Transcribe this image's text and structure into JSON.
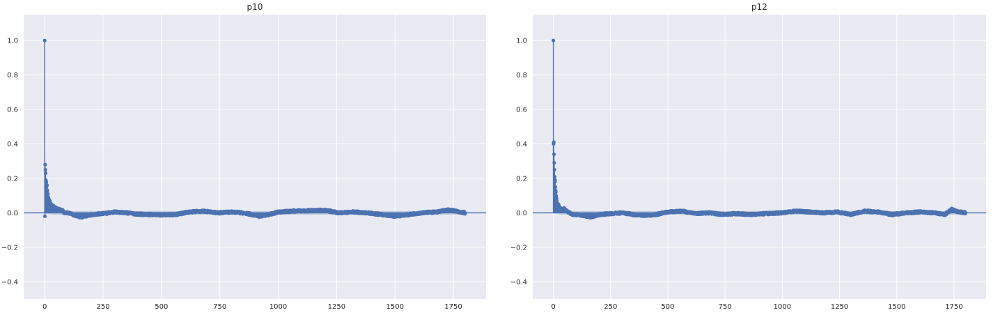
{
  "chart_data": [
    {
      "type": "acf-stem",
      "title": "p10",
      "xlabel": "",
      "ylabel": "",
      "xlim": [
        -90,
        1890
      ],
      "ylim": [
        -0.5,
        1.15
      ],
      "xticks": [
        0,
        250,
        500,
        750,
        1000,
        1250,
        1500,
        1750
      ],
      "yticks": [
        -0.4,
        -0.2,
        0.0,
        0.2,
        0.4,
        0.6,
        0.8,
        1.0
      ],
      "ytick_labels": [
        "−0.4",
        "−0.2",
        "0.0",
        "0.2",
        "0.4",
        "0.6",
        "0.8",
        "1.0"
      ],
      "grid": true,
      "max_lag": 1800,
      "confidence_band": 0.046,
      "series": [
        {
          "values_note": "",
          "early_lags": [
            [
              0,
              1.0
            ],
            [
              1,
              -0.02
            ],
            [
              2,
              0.28
            ],
            [
              3,
              0.25
            ],
            [
              4,
              0.23
            ],
            [
              5,
              0.19
            ],
            [
              6,
              0.17
            ],
            [
              7,
              0.18
            ],
            [
              8,
              0.15
            ],
            [
              9,
              0.12
            ],
            [
              10,
              0.16
            ],
            [
              11,
              0.1
            ],
            [
              12,
              0.13
            ],
            [
              13,
              0.08
            ],
            [
              14,
              0.11
            ],
            [
              15,
              0.07
            ],
            [
              16,
              0.09
            ],
            [
              17,
              0.06
            ],
            [
              18,
              0.08
            ],
            [
              20,
              0.06
            ],
            [
              22,
              0.07
            ],
            [
              25,
              0.05
            ],
            [
              28,
              0.05
            ],
            [
              32,
              0.04
            ],
            [
              36,
              0.04
            ],
            [
              40,
              0.03
            ],
            [
              45,
              0.03
            ],
            [
              50,
              0.02
            ],
            [
              55,
              0.025
            ],
            [
              60,
              0.02
            ],
            [
              70,
              0.015
            ],
            [
              80,
              0.01
            ]
          ],
          "tail_knots": [
            [
              100,
              0.0
            ],
            [
              130,
              -0.015
            ],
            [
              160,
              -0.025
            ],
            [
              200,
              -0.01
            ],
            [
              250,
              -0.005
            ],
            [
              300,
              0.005
            ],
            [
              350,
              0.0
            ],
            [
              400,
              -0.008
            ],
            [
              450,
              -0.01
            ],
            [
              500,
              -0.012
            ],
            [
              560,
              -0.01
            ],
            [
              620,
              0.005
            ],
            [
              680,
              0.01
            ],
            [
              740,
              0.0
            ],
            [
              800,
              0.005
            ],
            [
              860,
              -0.002
            ],
            [
              920,
              -0.02
            ],
            [
              960,
              -0.01
            ],
            [
              1000,
              0.005
            ],
            [
              1060,
              0.01
            ],
            [
              1120,
              0.012
            ],
            [
              1200,
              0.015
            ],
            [
              1260,
              0.0
            ],
            [
              1320,
              0.005
            ],
            [
              1380,
              0.0
            ],
            [
              1440,
              -0.01
            ],
            [
              1500,
              -0.02
            ],
            [
              1560,
              -0.01
            ],
            [
              1620,
              0.0
            ],
            [
              1680,
              0.005
            ],
            [
              1730,
              0.018
            ],
            [
              1760,
              0.01
            ],
            [
              1800,
              0.0
            ]
          ]
        }
      ]
    },
    {
      "type": "acf-stem",
      "title": "p12",
      "xlabel": "",
      "ylabel": "",
      "xlim": [
        -90,
        1890
      ],
      "ylim": [
        -0.5,
        1.15
      ],
      "xticks": [
        0,
        250,
        500,
        750,
        1000,
        1250,
        1500,
        1750
      ],
      "yticks": [
        -0.4,
        -0.2,
        0.0,
        0.2,
        0.4,
        0.6,
        0.8,
        1.0
      ],
      "ytick_labels": [
        "−0.4",
        "−0.2",
        "0.0",
        "0.2",
        "0.4",
        "0.6",
        "0.8",
        "1.0"
      ],
      "grid": true,
      "max_lag": 1800,
      "confidence_band": 0.046,
      "series": [
        {
          "values_note": "",
          "early_lags": [
            [
              0,
              1.0
            ],
            [
              1,
              0.4
            ],
            [
              2,
              0.41
            ],
            [
              3,
              0.34
            ],
            [
              4,
              0.29
            ],
            [
              5,
              0.25
            ],
            [
              6,
              0.21
            ],
            [
              7,
              0.18
            ],
            [
              8,
              0.19
            ],
            [
              9,
              0.15
            ],
            [
              10,
              0.13
            ],
            [
              11,
              0.12
            ],
            [
              12,
              0.1
            ],
            [
              13,
              0.09
            ],
            [
              14,
              0.08
            ],
            [
              15,
              0.07
            ],
            [
              16,
              0.06
            ],
            [
              18,
              0.05
            ],
            [
              20,
              0.04
            ],
            [
              22,
              0.05
            ],
            [
              25,
              0.035
            ],
            [
              28,
              0.03
            ],
            [
              32,
              0.025
            ],
            [
              36,
              0.02
            ],
            [
              40,
              0.02
            ],
            [
              45,
              0.025
            ],
            [
              50,
              0.02
            ],
            [
              55,
              0.015
            ],
            [
              60,
              0.01
            ],
            [
              70,
              0.0
            ],
            [
              80,
              -0.005
            ]
          ],
          "tail_knots": [
            [
              100,
              -0.01
            ],
            [
              130,
              -0.015
            ],
            [
              160,
              -0.025
            ],
            [
              200,
              -0.01
            ],
            [
              250,
              -0.005
            ],
            [
              300,
              0.0
            ],
            [
              350,
              -0.01
            ],
            [
              400,
              -0.015
            ],
            [
              450,
              -0.01
            ],
            [
              500,
              0.005
            ],
            [
              560,
              0.01
            ],
            [
              620,
              -0.005
            ],
            [
              680,
              0.0
            ],
            [
              740,
              -0.01
            ],
            [
              800,
              -0.005
            ],
            [
              860,
              -0.01
            ],
            [
              920,
              -0.005
            ],
            [
              1000,
              0.0
            ],
            [
              1060,
              0.01
            ],
            [
              1120,
              0.005
            ],
            [
              1180,
              0.0
            ],
            [
              1240,
              0.005
            ],
            [
              1300,
              -0.01
            ],
            [
              1360,
              0.01
            ],
            [
              1420,
              0.005
            ],
            [
              1480,
              -0.01
            ],
            [
              1540,
              0.0
            ],
            [
              1600,
              0.005
            ],
            [
              1660,
              0.0
            ],
            [
              1710,
              -0.01
            ],
            [
              1740,
              0.02
            ],
            [
              1770,
              0.005
            ],
            [
              1800,
              0.0
            ]
          ]
        }
      ]
    }
  ],
  "style": {
    "axes_bg": "#eaeaf2",
    "grid_color": "#ffffff",
    "series_color": "#4c72b0",
    "band_color": "#b8c4db",
    "text_color": "#262626"
  }
}
